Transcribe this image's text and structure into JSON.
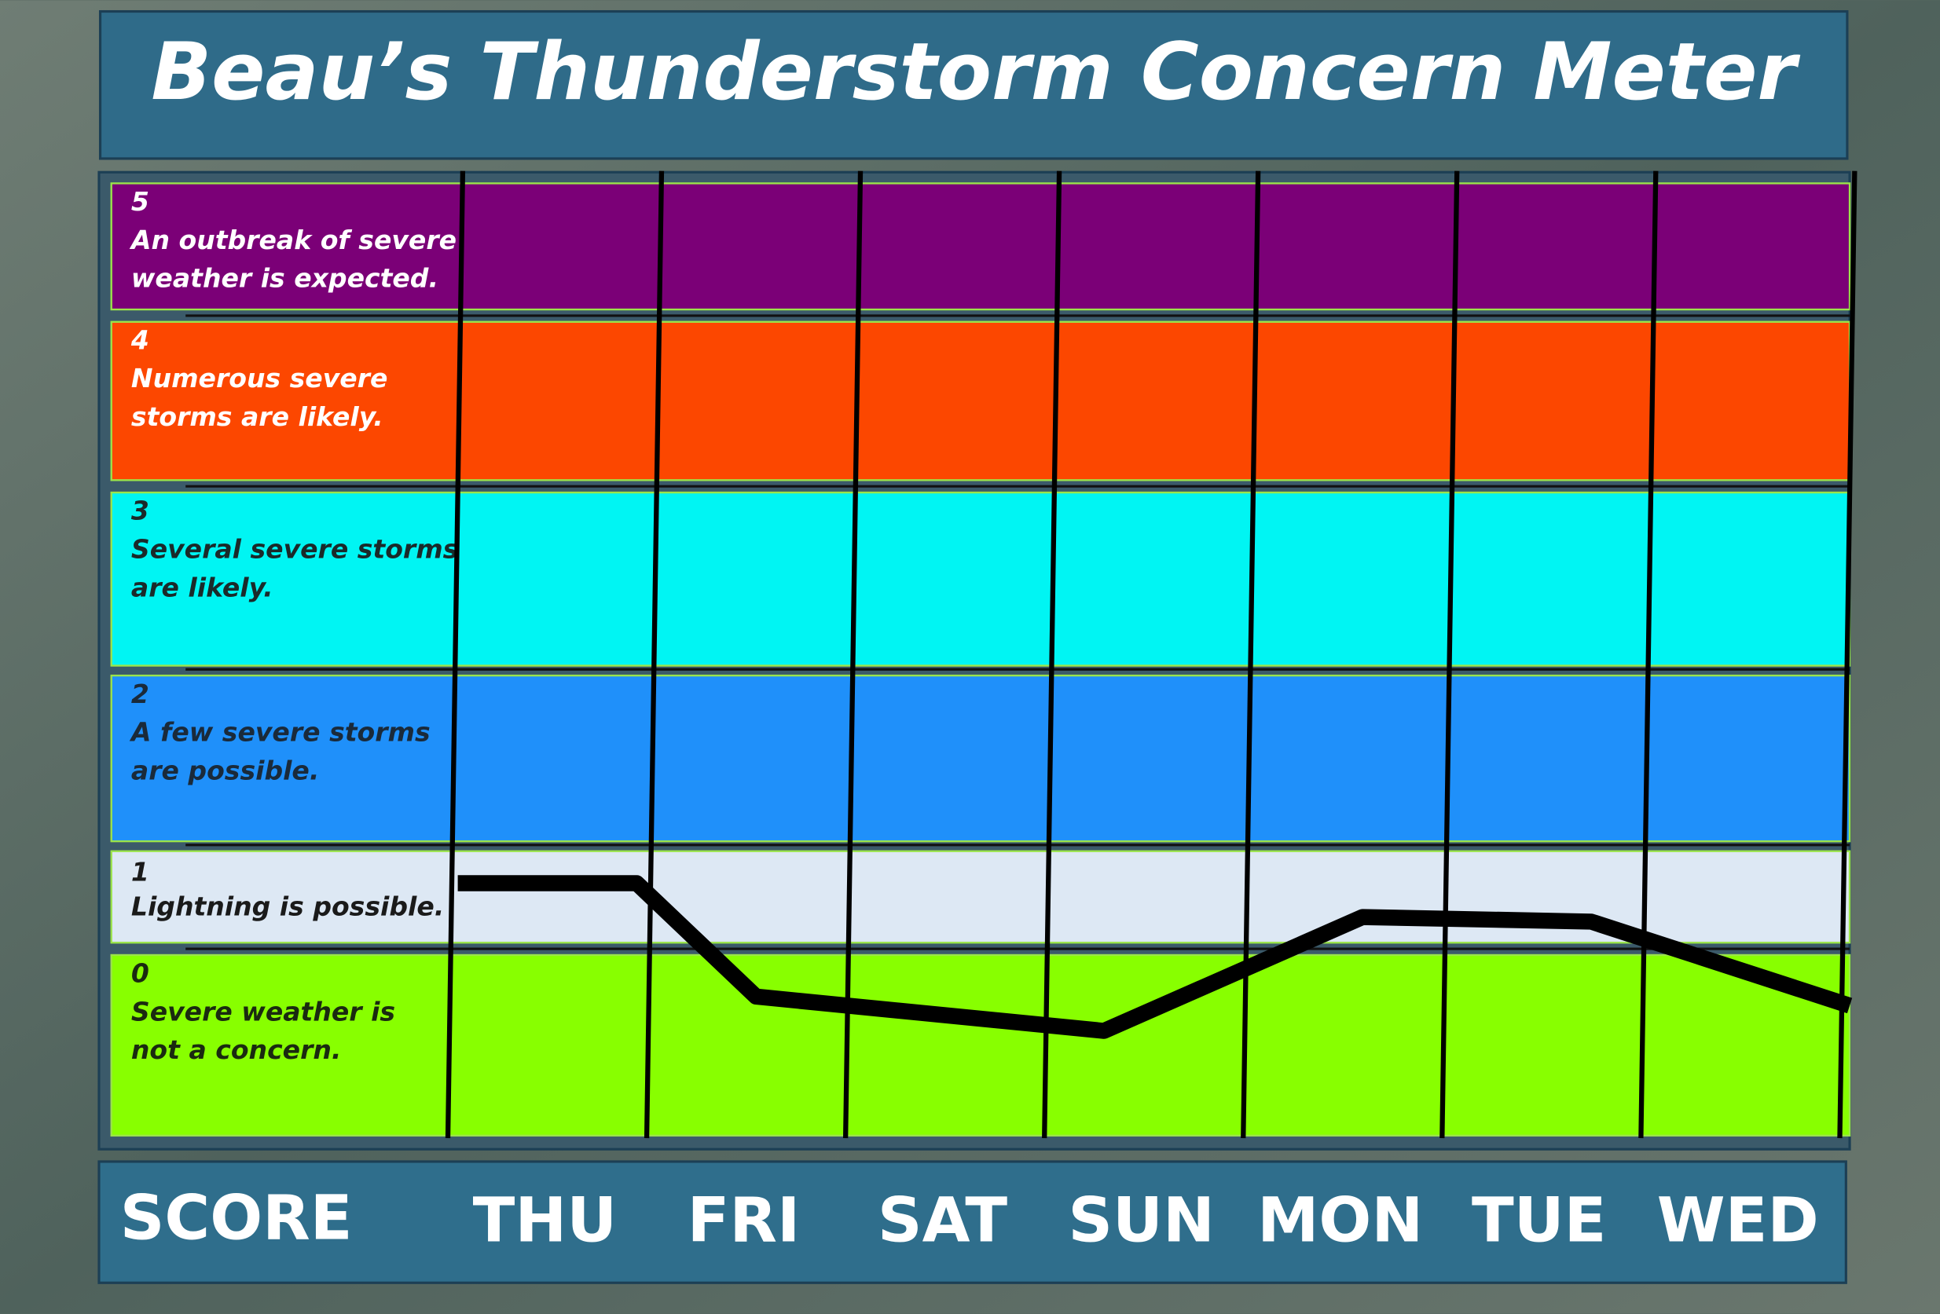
{
  "chart_data": {
    "type": "line",
    "title": "Beau’s Thunderstorm Concern Meter",
    "score_label": "SCORE",
    "categories": [
      "THU",
      "FRI",
      "SAT",
      "SUN",
      "MON",
      "TUE",
      "WED"
    ],
    "levels": [
      {
        "score": 5,
        "text": [
          "An outbreak of severe",
          "weather is expected."
        ],
        "color": "#7b0077",
        "text_color": "#ffffff"
      },
      {
        "score": 4,
        "text": [
          "Numerous severe",
          "storms are likely."
        ],
        "color": "#fc4700",
        "text_color": "#ffffff"
      },
      {
        "score": 3,
        "text": [
          "Several severe storms",
          "are likely."
        ],
        "color": "#00f5f3",
        "text_color": "#1a2a2a"
      },
      {
        "score": 2,
        "text": [
          "A few severe storms",
          "are possible."
        ],
        "color": "#1f90fa",
        "text_color": "#1a2a3a"
      },
      {
        "score": 1,
        "text": [
          "Lightning is possible."
        ],
        "color": "#dde8f4",
        "text_color": "#1a1a1a"
      },
      {
        "score": 0,
        "text": [
          "Severe weather is",
          "not a concern."
        ],
        "color": "#88ff00",
        "text_color": "#1a2a10"
      }
    ],
    "xlim": [
      0,
      7
    ],
    "series": [
      {
        "color": "#000000",
        "x": [
          0,
          0.9,
          1.5,
          3.25,
          4.55,
          5.7,
          7
        ],
        "values": [
          1.65,
          1.65,
          0.77,
          0.58,
          1.28,
          1.23,
          0.72
        ]
      }
    ]
  }
}
